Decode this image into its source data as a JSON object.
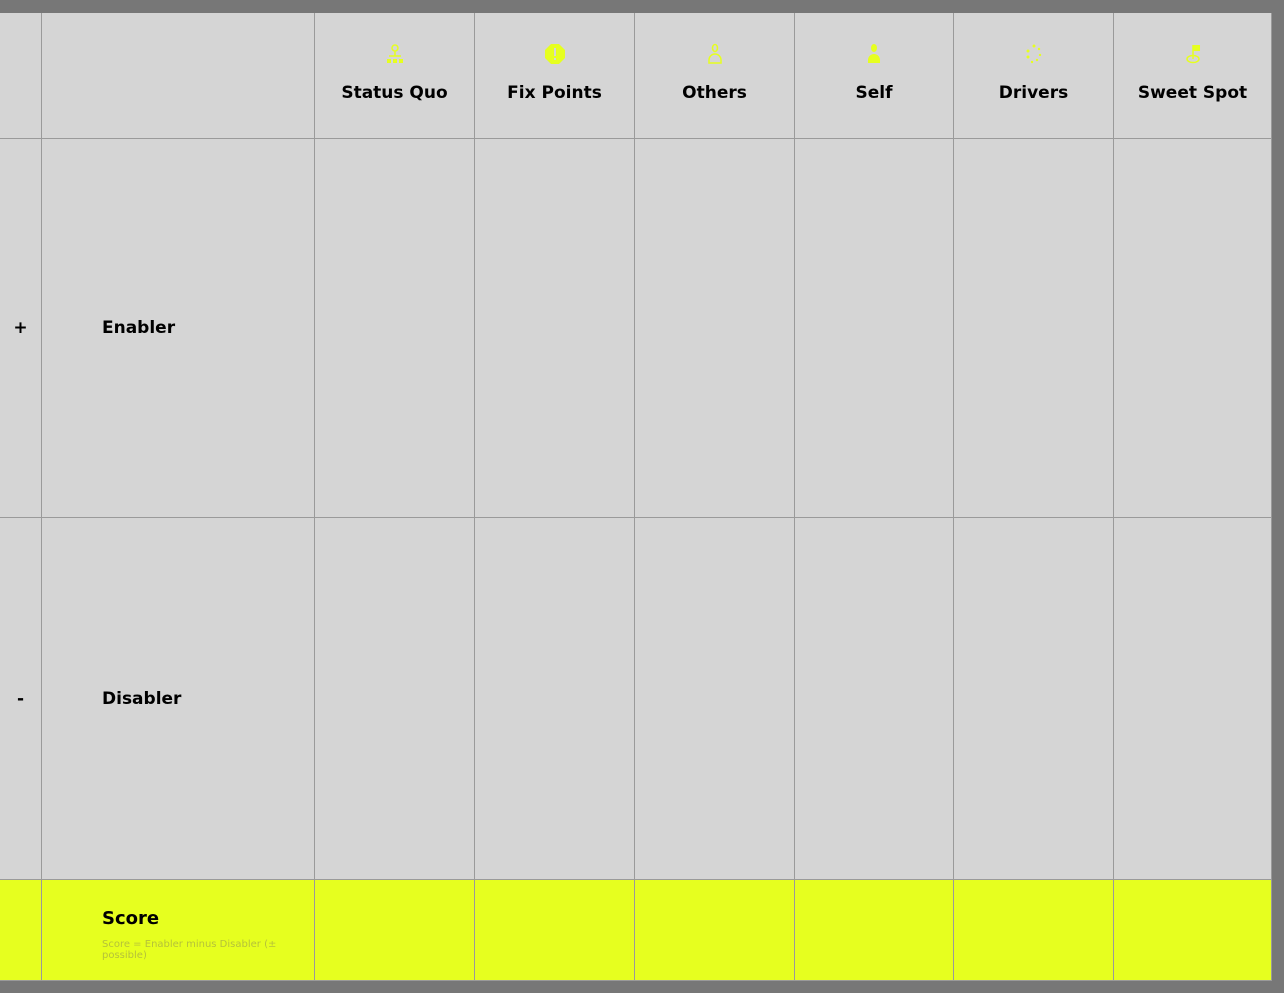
{
  "accent_color": "#e6ff1f",
  "columns": [
    {
      "label": "Status Quo",
      "icon": "map-pin-network-icon"
    },
    {
      "label": "Fix Points",
      "icon": "alert-octagon-icon"
    },
    {
      "label": "Others",
      "icon": "person-outline-icon"
    },
    {
      "label": "Self",
      "icon": "person-filled-icon"
    },
    {
      "label": "Drivers",
      "icon": "loading-dots-icon"
    },
    {
      "label": "Sweet Spot",
      "icon": "flag-target-icon"
    }
  ],
  "rows": [
    {
      "sign": "+",
      "label": "Enabler"
    },
    {
      "sign": "-",
      "label": "Disabler"
    }
  ],
  "score": {
    "label": "Score",
    "note": "Score = Enabler minus Disabler (± possible)"
  }
}
